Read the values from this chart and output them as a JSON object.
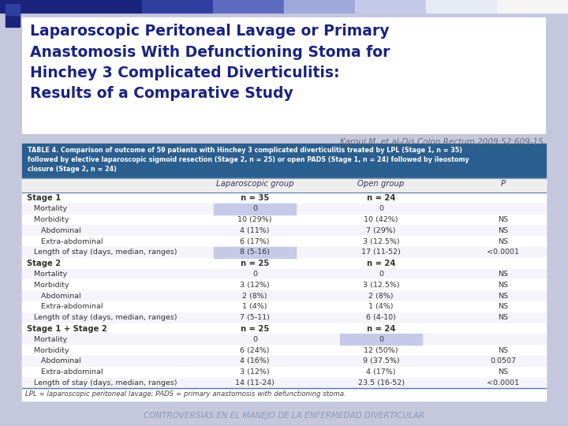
{
  "bg_color": "#c5c8dc",
  "title_bg": "#ffffff",
  "title_text": "Laparoscopic Peritoneal Lavage or Primary\nAnastomosis With Defunctioning Stoma for\nHinchey 3 Complicated Diverticulitis:\nResults of a Comparative Study",
  "title_color": "#1a237e",
  "subtitle_text": "Karoui M, et al-Dis Colon Rectum 2009;52:609-15.",
  "subtitle_color": "#666677",
  "table_header_bg": "#2a5f8f",
  "table_header_color": "#ffffff",
  "table_header_text": "TABLE 4. Comparison of outcome of 59 patients with Hinchey 3 complicated diverticulitis treated by LPL (Stage 1, n = 35)\nfollowed by elective laparoscopic sigmoid resection (Stage 2, n = 25) or open PADS (Stage 1, n = 24) followed by ileostomy\nclosure (Stage 2, n = 24)",
  "col_headers": [
    "",
    "Laparoscopic group",
    "Open group",
    "P"
  ],
  "highlight_color": "#c5cae9",
  "table_rows": [
    [
      "Stage 1",
      "n = 35",
      "n = 24",
      ""
    ],
    [
      "   Mortality",
      "0",
      "0",
      ""
    ],
    [
      "   Morbidity",
      "10 (29%)",
      "10 (42%)",
      "NS"
    ],
    [
      "      Abdominal",
      "4 (11%)",
      "7 (29%)",
      "NS"
    ],
    [
      "      Extra-abdominal",
      "6 (17%)",
      "3 (12.5%)",
      "NS"
    ],
    [
      "   Length of stay (days, median, ranges)",
      "8 (5-16)",
      "17 (11-52)",
      "<0.0001"
    ],
    [
      "Stage 2",
      "n = 25",
      "n = 24",
      ""
    ],
    [
      "   Mortality",
      "0",
      "0",
      "NS"
    ],
    [
      "   Morbidity",
      "3 (12%)",
      "3 (12.5%)",
      "NS"
    ],
    [
      "      Abdominal",
      "2 (8%)",
      "2 (8%)",
      "NS"
    ],
    [
      "      Extra-abdominal",
      "1 (4%)",
      "1 (4%)",
      "NS"
    ],
    [
      "   Length of stay (days, median, ranges)",
      "7 (5-11)",
      "6 (4-10)",
      "NS"
    ],
    [
      "Stage 1 + Stage 2",
      "n = 25",
      "n = 24",
      ""
    ],
    [
      "   Mortality",
      "0",
      "0",
      ""
    ],
    [
      "   Morbidity",
      "6 (24%)",
      "12 (50%)",
      "NS"
    ],
    [
      "      Abdominal",
      "4 (16%)",
      "9 (37.5%)",
      "0.0507"
    ],
    [
      "      Extra-abdominal",
      "3 (12%)",
      "4 (17%)",
      "NS"
    ],
    [
      "   Length of stay (days, median, ranges)",
      "14 (11-24)",
      "23.5 (16-52)",
      "<0.0001"
    ]
  ],
  "highlight_lap_rows": [
    1,
    5
  ],
  "highlight_open_rows": [
    13
  ],
  "footnote_text": "LPL = laparoscopic peritoneal lavage; PADS = primary anastomosis with defunctioning stoma.",
  "footer_text": "CONTROVERSIAS EN EL MANEJO DE LA ENFERMEDAD DIVERTICULAR",
  "footer_color": "#8899bb",
  "table_line_color": "#5577aa",
  "table_bg": "#ffffff",
  "text_color": "#333333",
  "bold_rows": [
    0,
    6,
    12
  ],
  "top_bar_colors": [
    "#1a237e",
    "#1a237e",
    "#303f9f",
    "#5c6bc0",
    "#9fa8da",
    "#c5cae9",
    "#e8eaf6",
    "#f5f5f5"
  ],
  "deco_sq1_color": "#1a237e",
  "deco_sq2_color": "#303f9f"
}
